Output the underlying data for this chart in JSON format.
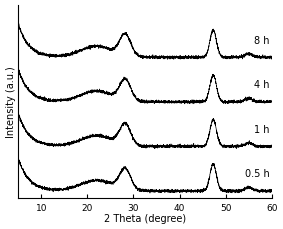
{
  "xlabel": "2 Theta (degree)",
  "ylabel": "Intensity (a.u.)",
  "xlim": [
    5,
    60
  ],
  "xticks": [
    10,
    20,
    30,
    40,
    50,
    60
  ],
  "labels": [
    "0.5 h",
    "1 h",
    "4 h",
    "8 h"
  ],
  "offsets": [
    0.0,
    0.72,
    1.44,
    2.16
  ],
  "line_color": "#000000",
  "background_color": "white",
  "axis_fontsize": 7,
  "label_fontsize": 7,
  "tick_fontsize": 6.5
}
